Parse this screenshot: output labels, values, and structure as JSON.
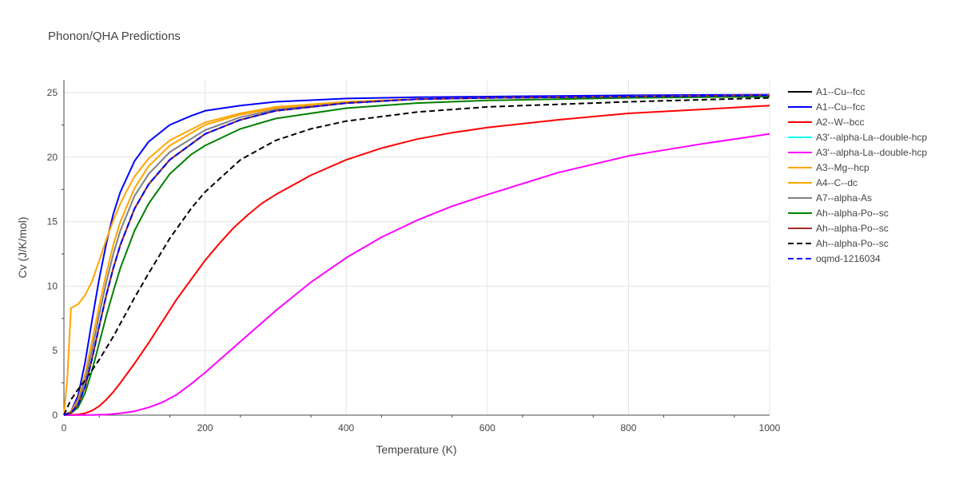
{
  "chart_data": {
    "type": "line",
    "title": "Phonon/QHA Predictions",
    "xlabel": "Temperature (K)",
    "ylabel": "Cv (J/K/mol)",
    "xlim": [
      0,
      1000
    ],
    "ylim": [
      0,
      26
    ],
    "xticks": [
      0,
      200,
      400,
      600,
      800,
      1000
    ],
    "yticks": [
      0,
      5,
      10,
      15,
      20,
      25
    ],
    "grid": true,
    "legend_position": "right",
    "series": [
      {
        "name": "A1--Cu--fcc",
        "color": "#000000",
        "dash": "solid",
        "x": [
          0,
          10,
          20,
          30,
          40,
          50,
          60,
          70,
          80,
          100,
          120,
          150,
          200,
          250,
          300,
          400,
          500,
          600,
          800,
          1000
        ],
        "y": [
          0,
          0.2,
          0.8,
          2.2,
          4.4,
          6.9,
          9.3,
          11.4,
          13.2,
          16.0,
          17.9,
          19.8,
          21.8,
          22.9,
          23.6,
          24.2,
          24.5,
          24.6,
          24.7,
          24.8
        ]
      },
      {
        "name": "A1--Cu--fcc",
        "color": "#0000ff",
        "dash": "solid",
        "x": [
          0,
          10,
          20,
          30,
          40,
          50,
          60,
          70,
          80,
          100,
          120,
          150,
          180,
          200,
          250,
          300,
          400,
          500,
          600,
          800,
          1000
        ],
        "y": [
          0,
          0.3,
          1.5,
          4.1,
          7.4,
          10.6,
          13.3,
          15.6,
          17.3,
          19.7,
          21.2,
          22.5,
          23.2,
          23.6,
          24.0,
          24.3,
          24.55,
          24.65,
          24.7,
          24.8,
          24.85
        ]
      },
      {
        "name": "A2--W--bcc",
        "color": "#ff0000",
        "dash": "solid",
        "x": [
          0,
          20,
          30,
          40,
          50,
          60,
          70,
          80,
          100,
          120,
          140,
          160,
          180,
          200,
          220,
          240,
          260,
          280,
          300,
          350,
          400,
          450,
          500,
          550,
          600,
          700,
          800,
          900,
          1000
        ],
        "y": [
          0,
          0.05,
          0.15,
          0.35,
          0.7,
          1.2,
          1.8,
          2.5,
          4.0,
          5.6,
          7.3,
          9.0,
          10.5,
          12.0,
          13.3,
          14.5,
          15.5,
          16.4,
          17.1,
          18.6,
          19.8,
          20.7,
          21.4,
          21.9,
          22.3,
          22.9,
          23.4,
          23.7,
          24.0
        ]
      },
      {
        "name": "A3'--alpha-La--double-hcp",
        "color": "#00ffff",
        "dash": "solid",
        "x": [
          0,
          10,
          20,
          30,
          40,
          50,
          60,
          70,
          80,
          100,
          120,
          150,
          200,
          250,
          300,
          400,
          500,
          600,
          800,
          1000
        ],
        "y": [
          0,
          0.2,
          0.8,
          2.2,
          4.4,
          6.9,
          9.3,
          11.4,
          13.2,
          16.0,
          17.9,
          19.8,
          21.8,
          22.9,
          23.6,
          24.2,
          24.5,
          24.6,
          24.7,
          24.8
        ]
      },
      {
        "name": "A3'--alpha-La--double-hcp",
        "color": "#ff00ff",
        "dash": "solid",
        "x": [
          0,
          40,
          60,
          80,
          100,
          120,
          140,
          160,
          180,
          200,
          250,
          300,
          350,
          400,
          450,
          500,
          550,
          600,
          700,
          800,
          900,
          1000
        ],
        "y": [
          0,
          0.02,
          0.05,
          0.15,
          0.3,
          0.6,
          1.0,
          1.6,
          2.4,
          3.3,
          5.7,
          8.1,
          10.3,
          12.2,
          13.8,
          15.1,
          16.2,
          17.1,
          18.8,
          20.1,
          21.0,
          21.8
        ]
      },
      {
        "name": "A3--Mg--hcp",
        "color": "#ffa500",
        "dash": "solid",
        "x": [
          0,
          10,
          20,
          30,
          40,
          50,
          60,
          70,
          80,
          100,
          120,
          150,
          200,
          250,
          300,
          400,
          500,
          600,
          800,
          1000
        ],
        "y": [
          0,
          0.3,
          1.2,
          3.2,
          5.8,
          8.5,
          11.0,
          13.2,
          15.0,
          17.6,
          19.3,
          20.9,
          22.5,
          23.3,
          23.8,
          24.3,
          24.5,
          24.6,
          24.7,
          24.8
        ]
      },
      {
        "name": "A4--C--dc",
        "color": "#ffa500",
        "dash": "solid",
        "x": [
          0,
          5,
          10,
          20,
          30,
          40,
          50,
          60,
          70,
          80,
          90,
          100,
          120,
          150,
          200,
          250,
          300,
          400,
          500,
          600,
          800,
          1000
        ],
        "y": [
          0,
          3.0,
          8.3,
          8.6,
          9.3,
          10.4,
          12.0,
          13.6,
          15.1,
          16.4,
          17.5,
          18.5,
          19.9,
          21.3,
          22.7,
          23.4,
          23.9,
          24.3,
          24.5,
          24.6,
          24.7,
          24.8
        ]
      },
      {
        "name": "A7--alpha-As",
        "color": "#808080",
        "dash": "solid",
        "x": [
          0,
          10,
          20,
          30,
          40,
          50,
          60,
          70,
          80,
          100,
          120,
          150,
          200,
          250,
          300,
          400,
          500,
          600,
          800,
          1000
        ],
        "y": [
          0,
          0.2,
          1.0,
          2.7,
          5.1,
          7.8,
          10.3,
          12.5,
          14.3,
          17.0,
          18.7,
          20.4,
          22.1,
          23.1,
          23.7,
          24.2,
          24.5,
          24.6,
          24.7,
          24.8
        ]
      },
      {
        "name": "Ah--alpha-Po--sc",
        "color": "#008000",
        "dash": "solid",
        "x": [
          0,
          10,
          20,
          30,
          40,
          50,
          60,
          70,
          80,
          100,
          120,
          150,
          180,
          200,
          250,
          300,
          400,
          500,
          600,
          800,
          1000
        ],
        "y": [
          0,
          0.15,
          0.6,
          1.7,
          3.5,
          5.6,
          7.7,
          9.6,
          11.4,
          14.3,
          16.4,
          18.7,
          20.2,
          20.9,
          22.2,
          23.0,
          23.8,
          24.2,
          24.4,
          24.6,
          24.7
        ]
      },
      {
        "name": "Ah--alpha-Po--sc",
        "color": "#a52a2a",
        "dash": "solid",
        "x": [
          0,
          10,
          20,
          30,
          40,
          50,
          60,
          70,
          80,
          100,
          120,
          150,
          200,
          250,
          300,
          400,
          500,
          600,
          800,
          1000
        ],
        "y": [
          0,
          0.2,
          0.8,
          2.2,
          4.4,
          6.9,
          9.3,
          11.4,
          13.2,
          16.0,
          17.9,
          19.8,
          21.8,
          22.9,
          23.6,
          24.2,
          24.5,
          24.6,
          24.7,
          24.8
        ]
      },
      {
        "name": "Ah--alpha-Po--sc",
        "color": "#000000",
        "dash": "dash",
        "x": [
          0,
          10,
          20,
          30,
          40,
          50,
          60,
          70,
          80,
          100,
          120,
          150,
          180,
          200,
          250,
          300,
          350,
          400,
          500,
          600,
          800,
          1000
        ],
        "y": [
          0,
          1.2,
          2.0,
          2.7,
          3.5,
          4.3,
          5.2,
          6.1,
          7.1,
          9.1,
          11.0,
          13.7,
          16.0,
          17.3,
          19.8,
          21.3,
          22.2,
          22.8,
          23.5,
          23.9,
          24.3,
          24.6
        ]
      },
      {
        "name": "oqmd-1216034",
        "color": "#0000ff",
        "dash": "dash",
        "x": [
          0,
          10,
          20,
          30,
          40,
          50,
          60,
          70,
          80,
          100,
          120,
          150,
          200,
          250,
          300,
          400,
          500,
          600,
          800,
          1000
        ],
        "y": [
          0,
          0.2,
          0.8,
          2.2,
          4.4,
          6.9,
          9.3,
          11.4,
          13.2,
          16.0,
          17.9,
          19.8,
          21.8,
          22.9,
          23.6,
          24.2,
          24.5,
          24.6,
          24.7,
          24.8
        ]
      }
    ]
  }
}
